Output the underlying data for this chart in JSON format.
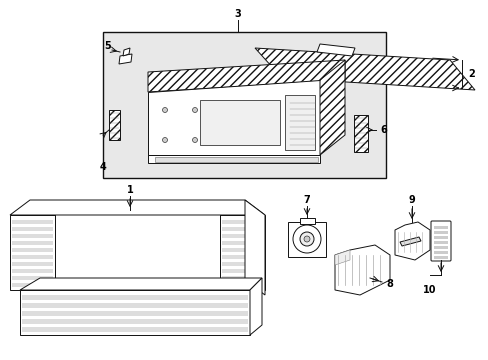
{
  "bg_color": "#ffffff",
  "fig_width": 4.89,
  "fig_height": 3.6,
  "dpi": 100,
  "lc": "#111111",
  "fc_white": "#ffffff",
  "fc_light": "#f0f0f0",
  "fc_hatch": "#e8e8e8",
  "lw": 0.7
}
